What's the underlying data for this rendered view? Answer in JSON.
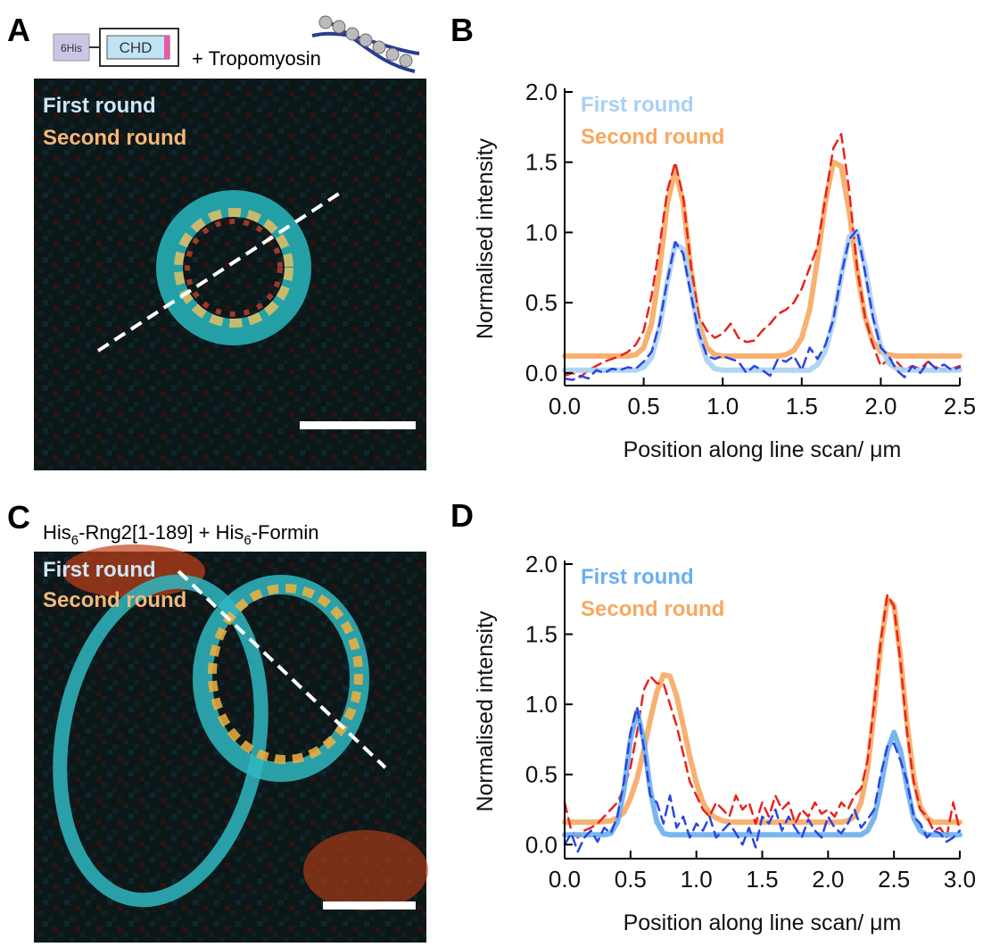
{
  "figure": {
    "panel_A": {
      "label": "A",
      "tag": "6His",
      "domain": "CHD",
      "partner": "+ Tropomyosin",
      "legend": [
        "First round",
        "Second round"
      ]
    },
    "panel_C": {
      "label": "C",
      "construct_parts": [
        "His",
        "6",
        "-Rng2[1-189] + His",
        "6",
        "-Formin"
      ],
      "legend": [
        "First round",
        "Second round"
      ]
    }
  },
  "chart_data": [
    {
      "type": "line",
      "panel_label": "B",
      "xlabel": "Position along line scan/ μm",
      "ylabel": "Normalised intensity",
      "legend": "upper left",
      "x": [
        0,
        0.05,
        0.1,
        0.15,
        0.2,
        0.25,
        0.3,
        0.35,
        0.4,
        0.45,
        0.5,
        0.55,
        0.6,
        0.65,
        0.7,
        0.75,
        0.8,
        0.85,
        0.9,
        0.95,
        1,
        1.05,
        1.1,
        1.15,
        1.2,
        1.25,
        1.3,
        1.35,
        1.4,
        1.45,
        1.5,
        1.55,
        1.6,
        1.65,
        1.7,
        1.75,
        1.8,
        1.85,
        1.9,
        1.95,
        2,
        2.05,
        2.1,
        2.15,
        2.2,
        2.25,
        2.3,
        2.35,
        2.4,
        2.45,
        2.5
      ],
      "xlim": [
        0,
        2.5
      ],
      "ylim": [
        -0.09,
        2.0
      ],
      "xticks": [
        {
          "value": 0,
          "label": "0.0"
        },
        0.5,
        {
          "value": 1,
          "label": "1.0"
        },
        1.5,
        {
          "value": 2,
          "label": "2.0"
        },
        2.5
      ],
      "yticks": [
        {
          "value": 0,
          "label": "0.0"
        },
        0.5,
        {
          "value": 1,
          "label": "1.0"
        },
        1.5,
        {
          "value": 2,
          "label": "2.0"
        }
      ],
      "series": [
        {
          "name": "Second round",
          "color": "#f7a860",
          "style": "solid",
          "values": [
            0.12,
            0.12,
            0.12,
            0.12,
            0.12,
            0.12,
            0.12,
            0.12,
            0.12,
            0.13,
            0.18,
            0.35,
            0.73,
            1.21,
            1.45,
            1.21,
            0.73,
            0.35,
            0.18,
            0.13,
            0.12,
            0.12,
            0.12,
            0.12,
            0.12,
            0.12,
            0.12,
            0.12,
            0.13,
            0.16,
            0.25,
            0.45,
            0.81,
            1.22,
            1.5,
            1.47,
            1.15,
            0.73,
            0.4,
            0.22,
            0.15,
            0.13,
            0.12,
            0.12,
            0.12,
            0.12,
            0.12,
            0.12,
            0.12,
            0.12,
            0.12
          ]
        },
        {
          "color": "#e8221c",
          "style": "dashed",
          "values": [
            -0.02,
            0,
            -0.03,
            0.02,
            0.05,
            0.08,
            0.1,
            0.12,
            0.15,
            0.2,
            0.3,
            0.55,
            0.9,
            1.3,
            1.5,
            1.25,
            0.75,
            0.4,
            0.3,
            0.25,
            0.28,
            0.35,
            0.25,
            0.22,
            0.23,
            0.3,
            0.35,
            0.42,
            0.45,
            0.5,
            0.6,
            0.75,
            0.9,
            1.25,
            1.6,
            1.7,
            1.3,
            0.75,
            0.4,
            0.2,
            0.05,
            0.1,
            0.08,
            0.02,
            0.05,
            0.03,
            0.08,
            0.04,
            0.02,
            0.03,
            0.05
          ]
        },
        {
          "name": "First round",
          "color": "#a8d0f4",
          "style": "solid",
          "values": [
            0.02,
            0.02,
            0.02,
            0.02,
            0.02,
            0.02,
            0.02,
            0.02,
            0.02,
            0.02,
            0.04,
            0.11,
            0.32,
            0.65,
            0.92,
            0.88,
            0.59,
            0.27,
            0.09,
            0.03,
            0.02,
            0.02,
            0.02,
            0.02,
            0.02,
            0.02,
            0.02,
            0.02,
            0.02,
            0.02,
            0.02,
            0.02,
            0.06,
            0.16,
            0.37,
            0.69,
            0.97,
            1.0,
            0.76,
            0.43,
            0.19,
            0.07,
            0.03,
            0.02,
            0.02,
            0.02,
            0.02,
            0.02,
            0.02,
            0.02,
            0.02
          ]
        },
        {
          "color": "#2b45e0",
          "style": "dashed",
          "values": [
            -0.04,
            -0.05,
            -0.02,
            -0.04,
            0.02,
            0,
            0.03,
            0.02,
            0.04,
            0.03,
            0.08,
            0.15,
            0.35,
            0.66,
            0.93,
            0.85,
            0.55,
            0.28,
            0.12,
            0.1,
            0.12,
            0.1,
            0.08,
            0,
            0.05,
            0.02,
            -0.02,
            0.1,
            0.08,
            0.12,
            0.02,
            0.18,
            0.1,
            0.2,
            0.38,
            0.7,
            0.95,
            1.02,
            0.72,
            0.4,
            0.18,
            0.12,
            0.02,
            -0.03,
            0.05,
            0,
            0.08,
            0.03,
            0.06,
            0.02,
            0.04
          ]
        }
      ]
    },
    {
      "type": "line",
      "panel_label": "D",
      "xlabel": "Position along line scan/ μm",
      "ylabel": "Normalised intensity",
      "legend": "upper left",
      "x": [
        0,
        0.05,
        0.1,
        0.15,
        0.2,
        0.25,
        0.3,
        0.35,
        0.4,
        0.45,
        0.5,
        0.55,
        0.6,
        0.65,
        0.7,
        0.75,
        0.8,
        0.85,
        0.9,
        0.95,
        1,
        1.05,
        1.1,
        1.15,
        1.2,
        1.25,
        1.3,
        1.35,
        1.4,
        1.45,
        1.5,
        1.55,
        1.6,
        1.65,
        1.7,
        1.75,
        1.8,
        1.85,
        1.9,
        1.95,
        2,
        2.05,
        2.1,
        2.15,
        2.2,
        2.25,
        2.3,
        2.35,
        2.4,
        2.45,
        2.5,
        2.55,
        2.6,
        2.65,
        2.7,
        2.75,
        2.8,
        2.85,
        2.9,
        2.95,
        3
      ],
      "xlim": [
        0,
        3
      ],
      "ylim": [
        -0.1,
        2.0
      ],
      "xticks": [
        {
          "value": 0,
          "label": "0.0"
        },
        0.5,
        {
          "value": 1,
          "label": "1.0"
        },
        1.5,
        {
          "value": 2,
          "label": "2.0"
        },
        2.5,
        {
          "value": 3,
          "label": "3.0"
        }
      ],
      "yticks": [
        {
          "value": 0,
          "label": "0.0"
        },
        0.5,
        {
          "value": 1,
          "label": "1.0"
        },
        1.5,
        {
          "value": 2,
          "label": "2.0"
        }
      ],
      "series": [
        {
          "name": "Second round",
          "color": "#f7a860",
          "style": "solid",
          "values": [
            0.16,
            0.16,
            0.16,
            0.16,
            0.16,
            0.16,
            0.165,
            0.17,
            0.19,
            0.23,
            0.33,
            0.47,
            0.67,
            0.89,
            1.09,
            1.21,
            1.2,
            1.06,
            0.85,
            0.63,
            0.44,
            0.3,
            0.22,
            0.19,
            0.17,
            0.16,
            0.16,
            0.16,
            0.16,
            0.16,
            0.16,
            0.16,
            0.16,
            0.16,
            0.16,
            0.16,
            0.16,
            0.16,
            0.16,
            0.16,
            0.16,
            0.16,
            0.16,
            0.17,
            0.2,
            0.3,
            0.54,
            0.95,
            1.42,
            1.75,
            1.71,
            1.34,
            0.86,
            0.48,
            0.27,
            0.19,
            0.16,
            0.16,
            0.16,
            0.16,
            0.16
          ]
        },
        {
          "color": "#e8221c",
          "style": "dashed",
          "values": [
            0.3,
            0.1,
            0.05,
            0.1,
            0.12,
            0.15,
            0.2,
            0.25,
            0.3,
            0.4,
            0.55,
            0.8,
            1.1,
            1.2,
            1.15,
            1.15,
            1.0,
            0.85,
            0.65,
            0.45,
            0.35,
            0.25,
            0.2,
            0.3,
            0.25,
            0.2,
            0.35,
            0.25,
            0.3,
            0.15,
            0.3,
            0.2,
            0.35,
            0.25,
            0.3,
            0.15,
            0.25,
            0.2,
            0.3,
            0.22,
            0.25,
            0.2,
            0.3,
            0.25,
            0.35,
            0.4,
            0.6,
            1.0,
            1.45,
            1.78,
            1.7,
            1.3,
            0.8,
            0.45,
            0.25,
            0.2,
            0.1,
            0.12,
            0.05,
            0.3,
            0.1
          ]
        },
        {
          "name": "First round",
          "color": "#6aaef0",
          "style": "solid",
          "values": [
            0.07,
            0.07,
            0.07,
            0.07,
            0.07,
            0.07,
            0.07,
            0.08,
            0.16,
            0.39,
            0.75,
            0.95,
            0.75,
            0.39,
            0.16,
            0.08,
            0.07,
            0.07,
            0.07,
            0.07,
            0.07,
            0.07,
            0.07,
            0.07,
            0.07,
            0.07,
            0.07,
            0.07,
            0.07,
            0.07,
            0.07,
            0.07,
            0.07,
            0.07,
            0.07,
            0.07,
            0.07,
            0.07,
            0.07,
            0.07,
            0.07,
            0.07,
            0.07,
            0.07,
            0.07,
            0.07,
            0.1,
            0.19,
            0.41,
            0.67,
            0.8,
            0.67,
            0.41,
            0.19,
            0.1,
            0.07,
            0.07,
            0.07,
            0.07,
            0.07,
            0.07
          ]
        },
        {
          "color": "#2b45e0",
          "style": "dashed",
          "values": [
            0,
            0.08,
            -0.05,
            0.05,
            0.1,
            0.02,
            0.12,
            0.08,
            0.2,
            0.45,
            0.8,
            0.98,
            0.7,
            0.35,
            0.3,
            0.15,
            0.35,
            0.12,
            0.2,
            0.05,
            0.15,
            0.1,
            0.2,
            0.05,
            0.1,
            0.15,
            0.08,
            0,
            0.12,
            -0.02,
            0.2,
            0.15,
            0.25,
            0.1,
            0.2,
            0.12,
            0.05,
            0.18,
            0.1,
            0.05,
            0.2,
            0.12,
            0.08,
            0.15,
            0.25,
            0.12,
            0.18,
            0.25,
            0.5,
            0.7,
            0.72,
            0.6,
            0.45,
            0.2,
            0.15,
            0.05,
            0.1,
            0.08,
            0.02,
            0.05,
            0.1
          ]
        }
      ]
    }
  ]
}
